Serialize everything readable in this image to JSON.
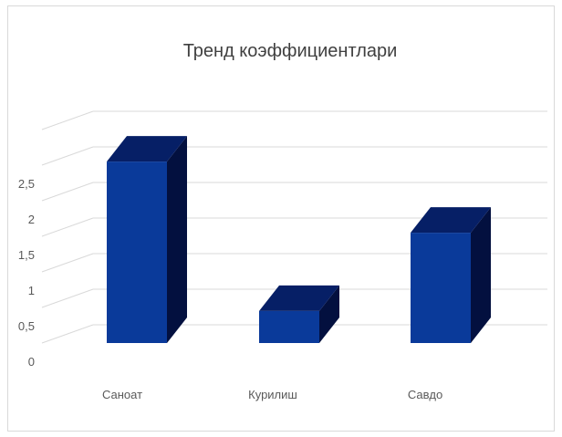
{
  "chart_data": {
    "type": "bar",
    "style": "3d-column",
    "title": "Тренд  коэффициентлари",
    "categories": [
      "Саноат",
      "Курилиш",
      "Савдо"
    ],
    "series": [
      {
        "values": [
          2.55,
          0.45,
          1.55
        ]
      }
    ],
    "yticks": [
      "0",
      "0,5",
      "1",
      "1,5",
      "2",
      "2,5"
    ],
    "ylim": [
      0,
      3
    ],
    "grid": true,
    "legend": "none",
    "colors": {
      "bar_front": "#0a3a9a",
      "bar_top": "#061f66",
      "bar_side": "#03103f",
      "grid": "#d9d9d9"
    }
  }
}
